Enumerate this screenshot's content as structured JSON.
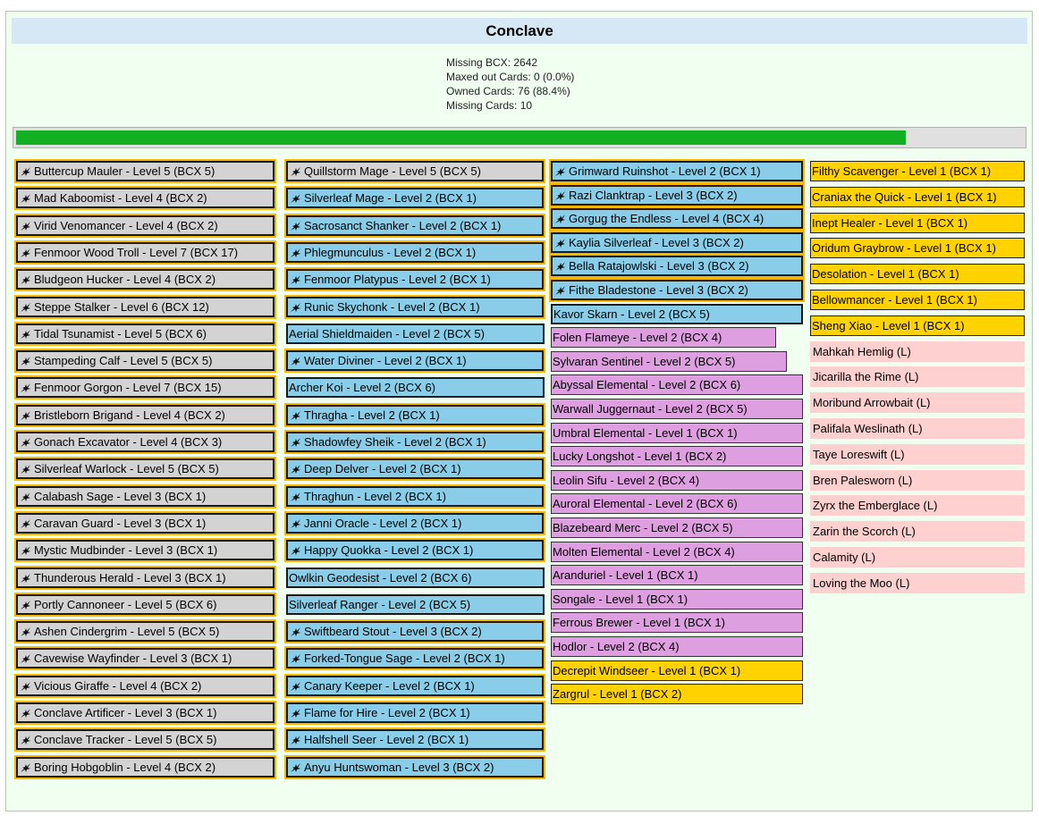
{
  "header": {
    "title": "Conclave"
  },
  "stats": [
    "Missing BCX: 2642",
    "Maxed out Cards: 0 (0.0%)",
    "Owned Cards: 76 (88.4%)",
    "Missing Cards: 10"
  ],
  "progress": {
    "fraction": 0.884
  },
  "colors": {
    "grey": "#d3d3d3",
    "blue": "#89cde9",
    "purple": "#dd9fe0",
    "yellow": "#ffd200",
    "pink": "#ffd0d0",
    "gold": "#f5b700",
    "progress": "#14b024"
  },
  "columns": [
    {
      "cards": [
        {
          "label": "Buttercup Mauler - Level 5 (BCX 5)",
          "style": "grey",
          "icon": true
        },
        {
          "label": "Mad Kaboomist - Level 4 (BCX 2)",
          "style": "grey",
          "icon": true
        },
        {
          "label": "Virid Venomancer - Level 4 (BCX 2)",
          "style": "grey",
          "icon": true
        },
        {
          "label": "Fenmoor Wood Troll - Level 7 (BCX 17)",
          "style": "grey",
          "icon": true
        },
        {
          "label": "Bludgeon Hucker - Level 4 (BCX 2)",
          "style": "grey",
          "icon": true
        },
        {
          "label": "Steppe Stalker - Level 6 (BCX 12)",
          "style": "grey",
          "icon": true
        },
        {
          "label": "Tidal Tsunamist - Level 5 (BCX 6)",
          "style": "grey",
          "icon": true
        },
        {
          "label": "Stampeding Calf - Level 5 (BCX 5)",
          "style": "grey",
          "icon": true
        },
        {
          "label": "Fenmoor Gorgon - Level 7 (BCX 15)",
          "style": "grey",
          "icon": true
        },
        {
          "label": "Bristleborn Brigand - Level 4 (BCX 2)",
          "style": "grey",
          "icon": true
        },
        {
          "label": "Gonach Excavator - Level 4 (BCX 3)",
          "style": "grey",
          "icon": true
        },
        {
          "label": "Silverleaf Warlock - Level 5 (BCX 5)",
          "style": "grey",
          "icon": true
        },
        {
          "label": "Calabash Sage - Level 3 (BCX 1)",
          "style": "grey",
          "icon": true
        },
        {
          "label": "Caravan Guard - Level 3 (BCX 1)",
          "style": "grey",
          "icon": true
        },
        {
          "label": "Mystic Mudbinder - Level 3 (BCX 1)",
          "style": "grey",
          "icon": true
        },
        {
          "label": "Thunderous Herald - Level 3 (BCX 1)",
          "style": "grey",
          "icon": true
        },
        {
          "label": "Portly Cannoneer - Level 5 (BCX 6)",
          "style": "grey",
          "icon": true
        },
        {
          "label": "Ashen Cindergrim - Level 5 (BCX 5)",
          "style": "grey",
          "icon": true
        },
        {
          "label": "Cavewise Wayfinder - Level 3 (BCX 1)",
          "style": "grey",
          "icon": true
        },
        {
          "label": "Vicious Giraffe - Level 4 (BCX 2)",
          "style": "grey",
          "icon": true
        },
        {
          "label": "Conclave Artificer - Level 3 (BCX 1)",
          "style": "grey",
          "icon": true
        },
        {
          "label": "Conclave Tracker - Level 5 (BCX 5)",
          "style": "grey",
          "icon": true
        },
        {
          "label": "Boring Hobgoblin - Level 4 (BCX 2)",
          "style": "grey",
          "icon": true
        }
      ]
    },
    {
      "cards": [
        {
          "label": "Quillstorm Mage - Level 5 (BCX 5)",
          "style": "grey",
          "icon": true
        },
        {
          "label": "Silverleaf Mage - Level 2 (BCX 1)",
          "style": "blue-g",
          "icon": true
        },
        {
          "label": "Sacrosanct Shanker - Level 2 (BCX 1)",
          "style": "blue-g",
          "icon": true
        },
        {
          "label": "Phlegmunculus - Level 2 (BCX 1)",
          "style": "blue-g",
          "icon": true
        },
        {
          "label": "Fenmoor Platypus - Level 2 (BCX 1)",
          "style": "blue-g",
          "icon": true
        },
        {
          "label": "Runic Skychonk - Level 2 (BCX 1)",
          "style": "blue-g",
          "icon": true
        },
        {
          "label": "Aerial Shieldmaiden - Level 2 (BCX 5)",
          "style": "blue",
          "icon": false
        },
        {
          "label": "Water Diviner - Level 2 (BCX 1)",
          "style": "blue-g",
          "icon": true
        },
        {
          "label": "Archer Koi - Level 2 (BCX 6)",
          "style": "blue",
          "icon": false
        },
        {
          "label": "Thragha - Level 2 (BCX 1)",
          "style": "blue-g",
          "icon": true
        },
        {
          "label": "Shadowfey Sheik - Level 2 (BCX 1)",
          "style": "blue-g",
          "icon": true
        },
        {
          "label": "Deep Delver - Level 2 (BCX 1)",
          "style": "blue-g",
          "icon": true
        },
        {
          "label": "Thraghun - Level 2 (BCX 1)",
          "style": "blue-g",
          "icon": true
        },
        {
          "label": "Janni Oracle - Level 2 (BCX 1)",
          "style": "blue-g",
          "icon": true
        },
        {
          "label": "Happy Quokka - Level 2 (BCX 1)",
          "style": "blue-g",
          "icon": true
        },
        {
          "label": "Owlkin Geodesist - Level 2 (BCX 6)",
          "style": "blue",
          "icon": false
        },
        {
          "label": "Silverleaf Ranger - Level 2 (BCX 5)",
          "style": "blue",
          "icon": false
        },
        {
          "label": "Swiftbeard Stout - Level 3 (BCX 2)",
          "style": "blue-g",
          "icon": true
        },
        {
          "label": "Forked-Tongue Sage - Level 2 (BCX 1)",
          "style": "blue-g",
          "icon": true
        },
        {
          "label": "Canary Keeper - Level 2 (BCX 1)",
          "style": "blue-g",
          "icon": true
        },
        {
          "label": "Flame for Hire - Level 2 (BCX 1)",
          "style": "blue-g",
          "icon": true
        },
        {
          "label": "Halfshell Seer - Level 2 (BCX 1)",
          "style": "blue-g",
          "icon": true
        },
        {
          "label": "Anyu Huntswoman - Level 3 (BCX 2)",
          "style": "blue-g",
          "icon": true
        }
      ]
    },
    {
      "cards": [
        {
          "label": "Grimward Ruinshot - Level 2 (BCX 1)",
          "style": "blue-g",
          "icon": true
        },
        {
          "label": "Razi Clanktrap - Level 3 (BCX 2)",
          "style": "blue-g",
          "icon": true
        },
        {
          "label": "Gorgug the Endless - Level 4 (BCX 4)",
          "style": "blue-g",
          "icon": true
        },
        {
          "label": "Kaylia Silverleaf - Level 3 (BCX 2)",
          "style": "blue-g",
          "icon": true
        },
        {
          "label": "Bella Ratajowlski - Level 3 (BCX 2)",
          "style": "blue-g",
          "icon": true
        },
        {
          "label": "Fithe Bladestone - Level 3 (BCX 2)",
          "style": "blue-g",
          "icon": true
        },
        {
          "label": "Kavor Skarn - Level 2 (BCX 5)",
          "style": "blue",
          "icon": false
        },
        {
          "label": "Folen Flameye - Level 2 (BCX 4)",
          "style": "purple",
          "icon": false
        },
        {
          "label": "Sylvaran Sentinel - Level 2 (BCX 5)",
          "style": "purple",
          "icon": false
        },
        {
          "label": "Abyssal Elemental - Level 2 (BCX 6)",
          "style": "purple",
          "icon": false
        },
        {
          "label": "Warwall Juggernaut - Level 2 (BCX 5)",
          "style": "purple",
          "icon": false
        },
        {
          "label": "Umbral Elemental - Level 1 (BCX 1)",
          "style": "purple",
          "icon": false
        },
        {
          "label": "Lucky Longshot - Level 1 (BCX 2)",
          "style": "purple",
          "icon": false
        },
        {
          "label": "Leolin Sifu - Level 2 (BCX 4)",
          "style": "purple",
          "icon": false
        },
        {
          "label": "Auroral Elemental - Level 2 (BCX 6)",
          "style": "purple",
          "icon": false
        },
        {
          "label": "Blazebeard Merc - Level 2 (BCX 5)",
          "style": "purple",
          "icon": false
        },
        {
          "label": "Molten Elemental - Level 2 (BCX 4)",
          "style": "purple",
          "icon": false
        },
        {
          "label": "Aranduriel - Level 1 (BCX 1)",
          "style": "purple",
          "icon": false
        },
        {
          "label": "Songale - Level 1 (BCX 1)",
          "style": "purple",
          "icon": false
        },
        {
          "label": "Ferrous Brewer - Level 1 (BCX 1)",
          "style": "purple",
          "icon": false
        },
        {
          "label": "Hodlor - Level 2 (BCX 4)",
          "style": "purple",
          "icon": false
        },
        {
          "label": "Decrepit Windseer - Level 1 (BCX 1)",
          "style": "yellow",
          "icon": false
        },
        {
          "label": "Zargrul - Level 1 (BCX 2)",
          "style": "yellow",
          "icon": false
        }
      ]
    },
    {
      "cards": [
        {
          "label": "Filthy Scavenger - Level 1 (BCX 1)",
          "style": "yellow",
          "icon": false
        },
        {
          "label": "Craniax the Quick - Level 1 (BCX 1)",
          "style": "yellow",
          "icon": false
        },
        {
          "label": "Inept Healer - Level 1 (BCX 1)",
          "style": "yellow",
          "icon": false
        },
        {
          "label": "Oridum Graybrow - Level 1 (BCX 1)",
          "style": "yellow",
          "icon": false
        },
        {
          "label": "Desolation - Level 1 (BCX 1)",
          "style": "yellow",
          "icon": false
        },
        {
          "label": "Bellowmancer - Level 1 (BCX 1)",
          "style": "yellow",
          "icon": false
        },
        {
          "label": "Sheng Xiao - Level 1 (BCX 1)",
          "style": "yellow",
          "icon": false
        },
        {
          "label": "Mahkah Hemlig (L)",
          "style": "pink",
          "icon": false
        },
        {
          "label": "Jicarilla the Rime (L)",
          "style": "pink",
          "icon": false
        },
        {
          "label": "Moribund Arrowbait (L)",
          "style": "pink",
          "icon": false
        },
        {
          "label": "Palifala Weslinath (L)",
          "style": "pink",
          "icon": false
        },
        {
          "label": "Taye Loreswift (L)",
          "style": "pink",
          "icon": false
        },
        {
          "label": "Bren Palesworn (L)",
          "style": "pink",
          "icon": false
        },
        {
          "label": "Zyrx the Emberglace (L)",
          "style": "pink",
          "icon": false
        },
        {
          "label": "Zarin the Scorch (L)",
          "style": "pink",
          "icon": false
        },
        {
          "label": "Calamity (L)",
          "style": "pink",
          "icon": false
        },
        {
          "label": "Loving the Moo (L)",
          "style": "pink",
          "icon": false
        }
      ]
    }
  ]
}
